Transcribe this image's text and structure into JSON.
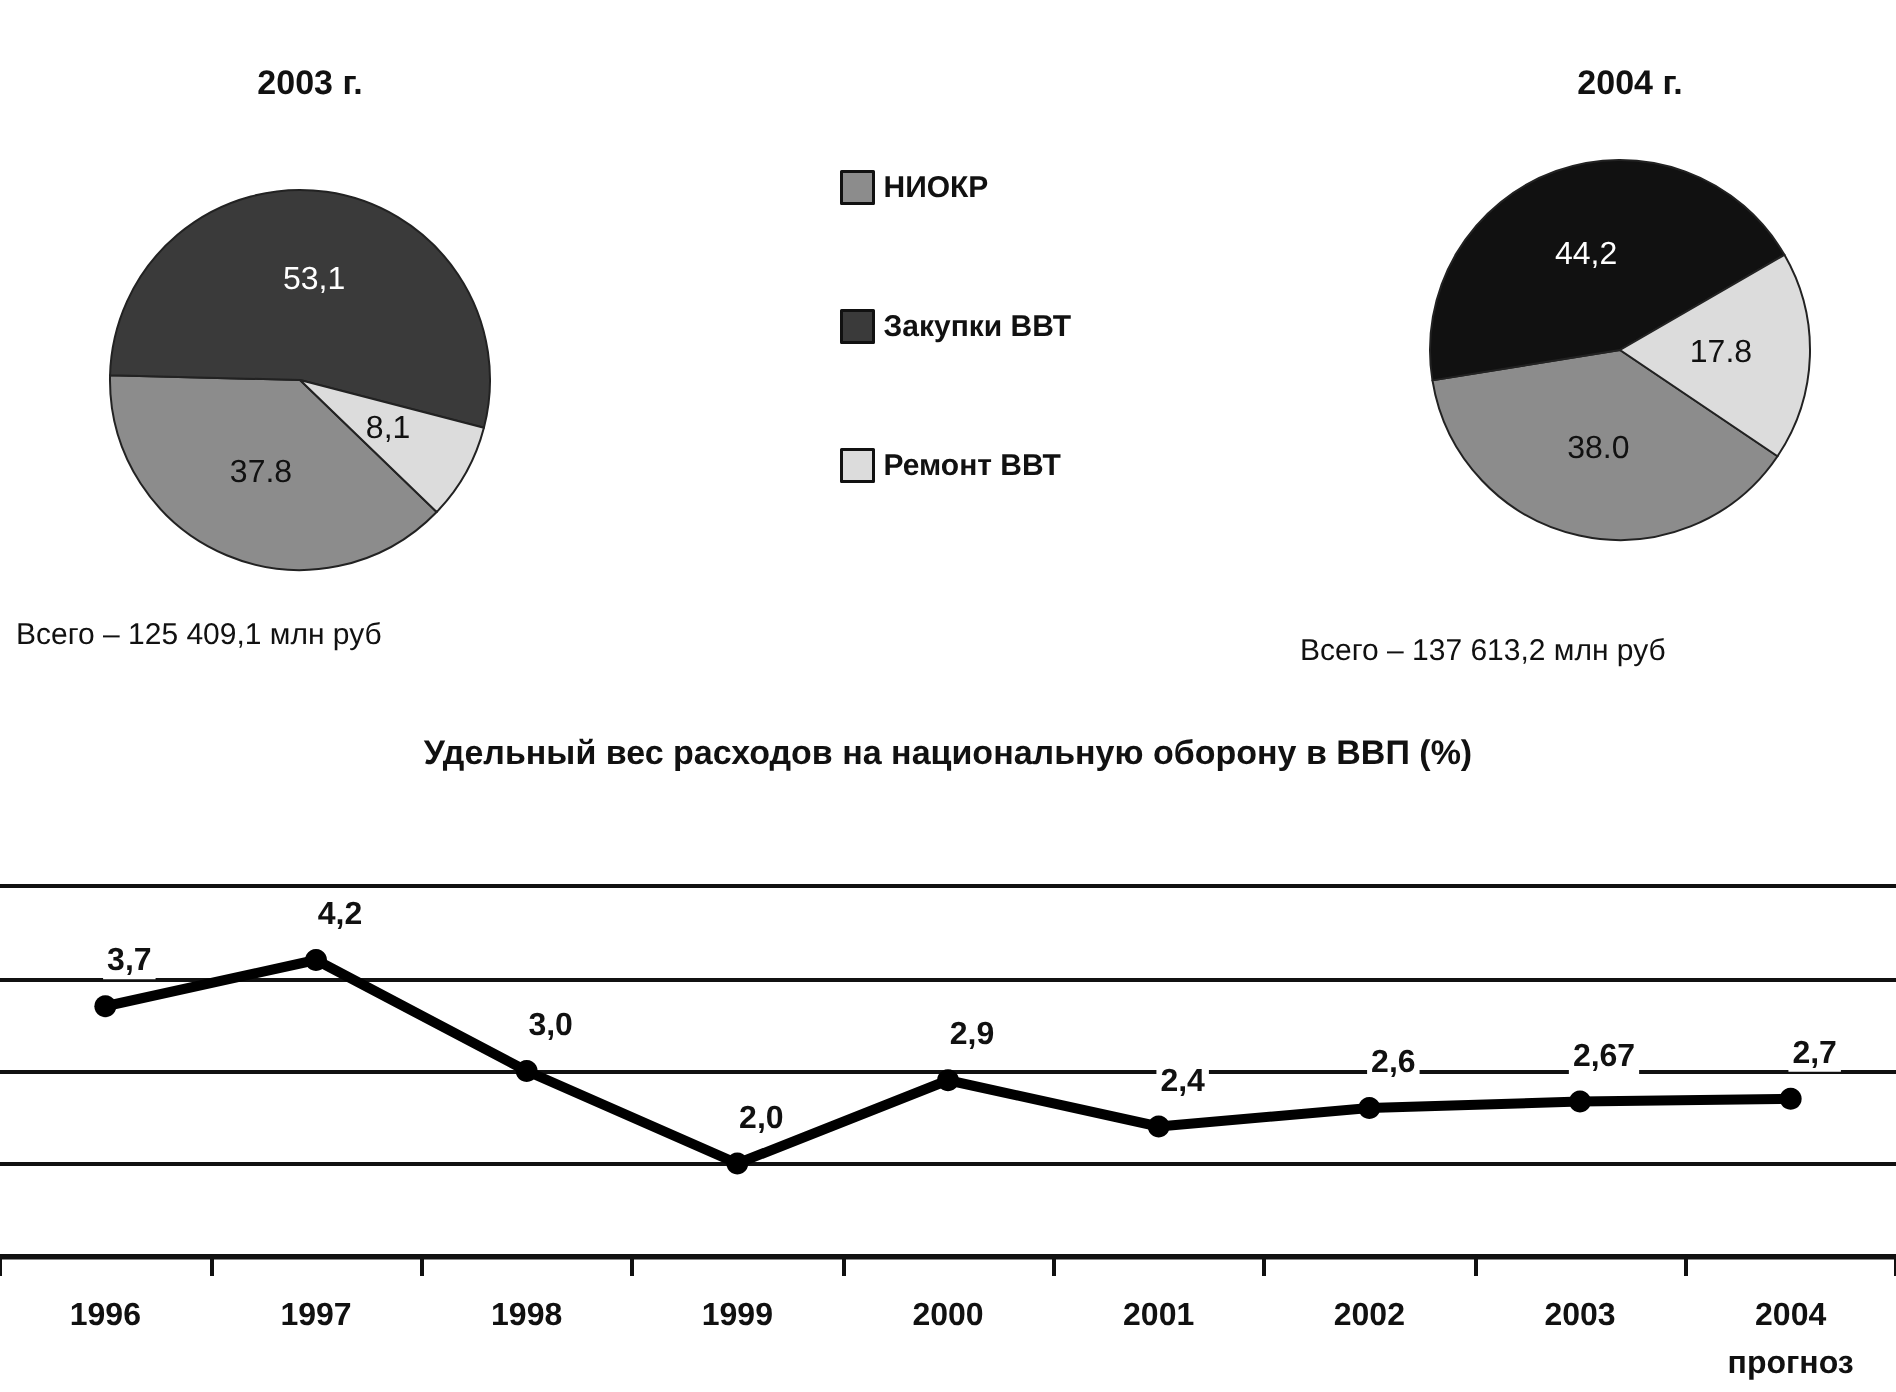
{
  "chart_data": [
    {
      "type": "pie",
      "title": "2003 г.",
      "categories": [
        "НИОКР",
        "Закупки ВВТ",
        "Ремонт ВВТ"
      ],
      "values": [
        37.8,
        53.1,
        8.1
      ],
      "colors": [
        "#8c8c8c",
        "#3a3a3a",
        "#dcdcdc"
      ],
      "value_labels": [
        "37.8",
        "53,1",
        "8,1"
      ],
      "legend": "right",
      "annotations": [
        "Всего – 125 409,1 млн руб"
      ]
    },
    {
      "type": "pie",
      "title": "2004 г.",
      "categories": [
        null,
        null,
        null
      ],
      "values": [
        38.0,
        44.2,
        17.8
      ],
      "colors": [
        "#8c8c8c",
        "#111111",
        "#dcdcdc"
      ],
      "value_labels": [
        "38.0",
        "44,2",
        "17.8"
      ],
      "annotations": [
        "Всего – 137 613,2 млн руб"
      ]
    },
    {
      "type": "line",
      "title": "Удельный вес расходов на национальную оборону в ВВП (%)",
      "categories": [
        "1996",
        "1997",
        "1998",
        "1999",
        "2000",
        "2001",
        "2002",
        "2003",
        "2004\nпрогноз"
      ],
      "series": [
        {
          "color": "#000000",
          "values": [
            3.7,
            4.2,
            3.0,
            2.0,
            2.9,
            2.4,
            2.6,
            2.67,
            2.7
          ],
          "value_labels": [
            "3,7",
            "4,2",
            "3,0",
            "2,0",
            "2,9",
            "2,4",
            "2,6",
            "2,67",
            "2,7"
          ]
        }
      ],
      "ylim": [
        1,
        5
      ],
      "yticks": [
        {
          "value": 1,
          "label": null
        },
        {
          "value": 2,
          "label": null
        },
        {
          "value": 3,
          "label": null
        },
        {
          "value": 4,
          "label": null
        },
        {
          "value": 5,
          "label": null
        }
      ],
      "grid": "y",
      "tick_labels": "x",
      "marker": "circle",
      "line_style": "solid"
    }
  ]
}
